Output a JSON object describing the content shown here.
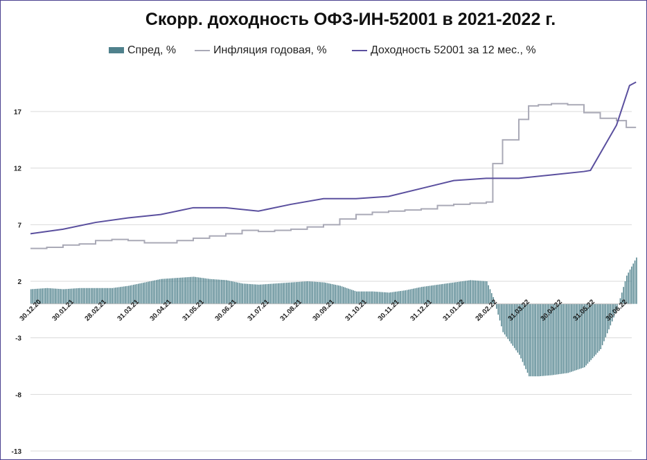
{
  "chart_data": {
    "type": "bar+line",
    "title": "Скорр. доходность ОФЗ-ИН-52001 в 2021-2022 г.",
    "legend_position": "top",
    "grid": true,
    "ylim": [
      -13,
      20
    ],
    "yticks": [
      17,
      12,
      7,
      2,
      -3,
      -8,
      -13
    ],
    "ytick_labels": [
      "17",
      "12",
      "7",
      "2",
      "-3",
      "-8",
      "-13"
    ],
    "xtick_labels": [
      "30.12.20",
      "30.01.21",
      "28.02.21",
      "31.03.21",
      "30.04.21",
      "31.05.21",
      "30.06.21",
      "31.07.21",
      "31.08.21",
      "30.09.21",
      "31.10.21",
      "30.11.21",
      "31.12.21",
      "31.01.22",
      "28.02.22",
      "31.03.22",
      "30.04.22",
      "31.05.22",
      "30.06.22"
    ],
    "x_index_range": [
      0,
      18.6
    ],
    "series": [
      {
        "name": "Спред, %",
        "kind": "bar",
        "color": "#4f818c",
        "points": [
          [
            0,
            1.3
          ],
          [
            0.5,
            1.4
          ],
          [
            1,
            1.3
          ],
          [
            1.5,
            1.4
          ],
          [
            2,
            1.4
          ],
          [
            2.5,
            1.4
          ],
          [
            3,
            1.6
          ],
          [
            3.5,
            1.9
          ],
          [
            4,
            2.2
          ],
          [
            4.5,
            2.3
          ],
          [
            5,
            2.4
          ],
          [
            5.5,
            2.2
          ],
          [
            6,
            2.1
          ],
          [
            6.5,
            1.8
          ],
          [
            7,
            1.7
          ],
          [
            7.5,
            1.8
          ],
          [
            8,
            1.9
          ],
          [
            8.5,
            2.0
          ],
          [
            9,
            1.9
          ],
          [
            9.5,
            1.6
          ],
          [
            10,
            1.1
          ],
          [
            10.5,
            1.1
          ],
          [
            11,
            1.0
          ],
          [
            11.5,
            1.2
          ],
          [
            12,
            1.5
          ],
          [
            12.5,
            1.7
          ],
          [
            13,
            1.9
          ],
          [
            13.5,
            2.1
          ],
          [
            14,
            2.0
          ],
          [
            14.2,
            0.6
          ],
          [
            14.5,
            -2.5
          ],
          [
            15,
            -4.5
          ],
          [
            15.3,
            -6.4
          ],
          [
            15.6,
            -6.4
          ],
          [
            16,
            -6.3
          ],
          [
            16.5,
            -6.1
          ],
          [
            17,
            -5.6
          ],
          [
            17.5,
            -4.0
          ],
          [
            18,
            -0.5
          ],
          [
            18.3,
            2.5
          ],
          [
            18.6,
            4.1
          ]
        ]
      },
      {
        "name": "Инфляция годовая, %",
        "kind": "step-line",
        "color": "#a9a9b6",
        "points": [
          [
            0,
            4.9
          ],
          [
            0.5,
            5.0
          ],
          [
            1,
            5.2
          ],
          [
            1.5,
            5.3
          ],
          [
            2,
            5.6
          ],
          [
            2.5,
            5.7
          ],
          [
            3,
            5.6
          ],
          [
            3.5,
            5.4
          ],
          [
            4,
            5.4
          ],
          [
            4.5,
            5.6
          ],
          [
            5,
            5.8
          ],
          [
            5.5,
            6.0
          ],
          [
            6,
            6.2
          ],
          [
            6.5,
            6.5
          ],
          [
            7,
            6.4
          ],
          [
            7.5,
            6.5
          ],
          [
            8,
            6.6
          ],
          [
            8.5,
            6.8
          ],
          [
            9,
            7.0
          ],
          [
            9.5,
            7.5
          ],
          [
            10,
            7.9
          ],
          [
            10.5,
            8.1
          ],
          [
            11,
            8.2
          ],
          [
            11.5,
            8.3
          ],
          [
            12,
            8.4
          ],
          [
            12.5,
            8.7
          ],
          [
            13,
            8.8
          ],
          [
            13.5,
            8.9
          ],
          [
            14,
            9.0
          ],
          [
            14.2,
            12.4
          ],
          [
            14.5,
            14.5
          ],
          [
            15,
            16.3
          ],
          [
            15.3,
            17.5
          ],
          [
            15.6,
            17.6
          ],
          [
            16,
            17.7
          ],
          [
            16.5,
            17.6
          ],
          [
            17,
            16.9
          ],
          [
            17.5,
            16.4
          ],
          [
            18,
            16.2
          ],
          [
            18.3,
            15.6
          ],
          [
            18.6,
            15.6
          ]
        ]
      },
      {
        "name": "Доходность 52001 за 12 мес., %",
        "kind": "line",
        "color": "#5a4f9e",
        "points": [
          [
            0,
            6.2
          ],
          [
            1,
            6.6
          ],
          [
            2,
            7.2
          ],
          [
            3,
            7.6
          ],
          [
            4,
            7.9
          ],
          [
            5,
            8.5
          ],
          [
            6,
            8.5
          ],
          [
            7,
            8.2
          ],
          [
            8,
            8.8
          ],
          [
            9,
            9.3
          ],
          [
            10,
            9.3
          ],
          [
            11,
            9.5
          ],
          [
            12,
            10.2
          ],
          [
            13,
            10.9
          ],
          [
            14,
            11.1
          ],
          [
            15,
            11.1
          ],
          [
            16,
            11.4
          ],
          [
            17,
            11.7
          ],
          [
            17.2,
            11.8
          ],
          [
            18,
            15.8
          ],
          [
            18.4,
            19.3
          ],
          [
            18.6,
            19.6
          ]
        ]
      }
    ]
  }
}
